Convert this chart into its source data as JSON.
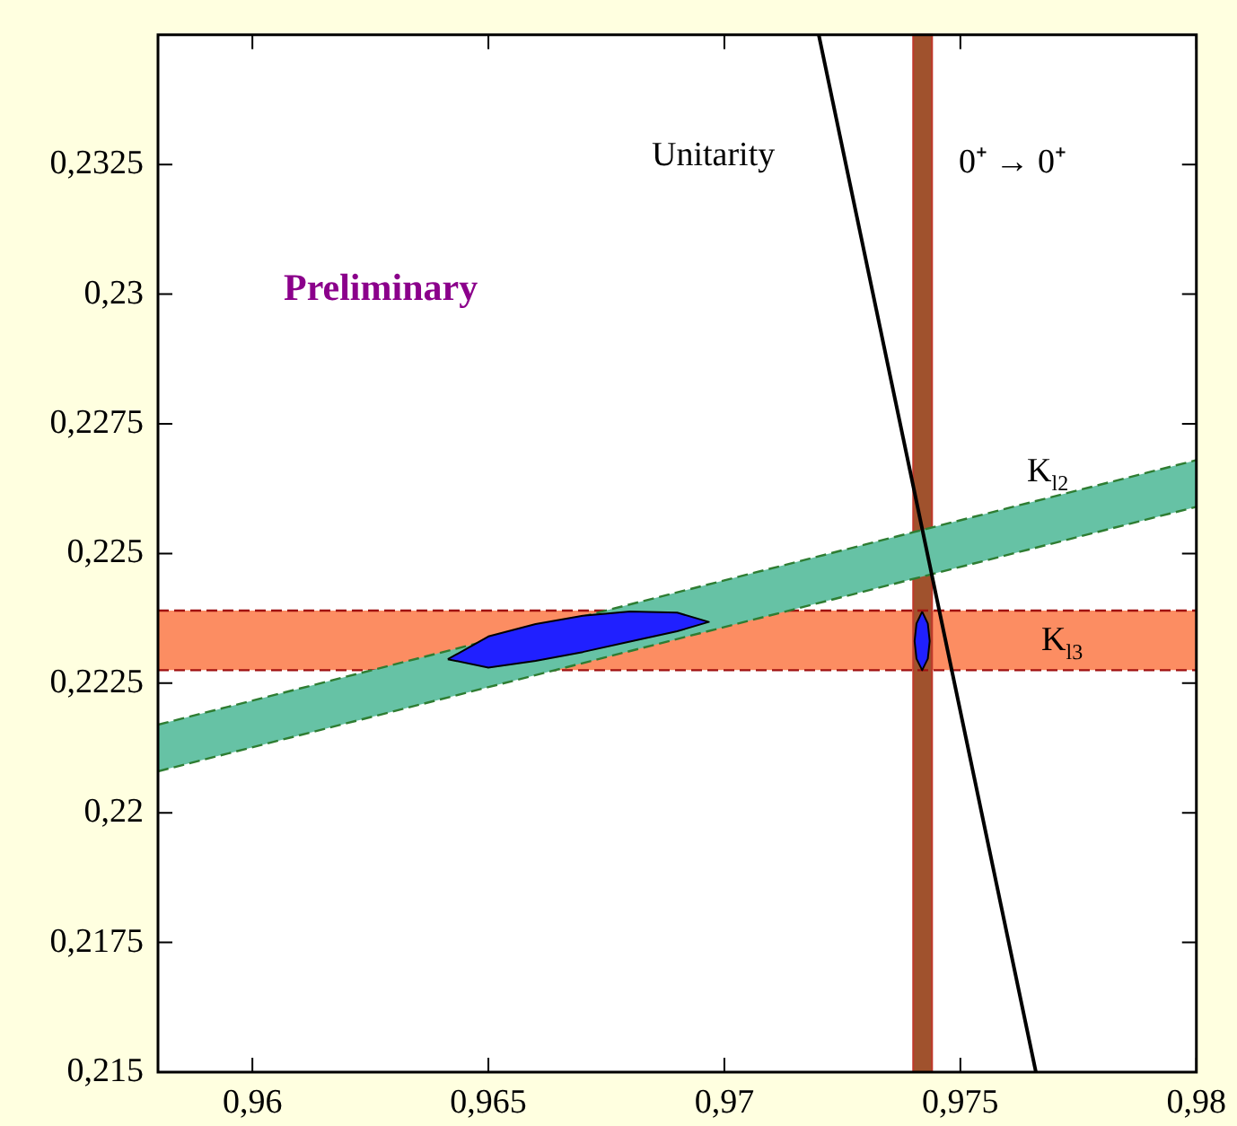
{
  "chart_data": {
    "type": "line",
    "xlim": [
      0.958,
      0.98
    ],
    "ylim": [
      0.215,
      0.235
    ],
    "xticks": [
      {
        "value": 0.96,
        "label": "0,96"
      },
      {
        "value": 0.965,
        "label": "0,965"
      },
      {
        "value": 0.97,
        "label": "0,97"
      },
      {
        "value": 0.975,
        "label": "0,975"
      },
      {
        "value": 0.98,
        "label": "0,98"
      }
    ],
    "yticks": [
      {
        "value": 0.215,
        "label": "0,215"
      },
      {
        "value": 0.2175,
        "label": "0,2175"
      },
      {
        "value": 0.22,
        "label": "0,22"
      },
      {
        "value": 0.2225,
        "label": "0,2225"
      },
      {
        "value": 0.225,
        "label": "0,225"
      },
      {
        "value": 0.2275,
        "label": "0,2275"
      },
      {
        "value": 0.23,
        "label": "0,23"
      },
      {
        "value": 0.2325,
        "label": "0,2325"
      }
    ],
    "grid": false,
    "legend": false,
    "marker": "none",
    "ref_lines": [
      {
        "axis": "y",
        "value": 0.22275,
        "color": "#a01010",
        "line_style": "dashed"
      },
      {
        "axis": "y",
        "value": 0.2239,
        "color": "#a01010",
        "line_style": "dashed"
      }
    ],
    "bands": [
      {
        "axis": "y",
        "from": 0.22275,
        "to": 0.2239,
        "color": "#fc8d62"
      },
      {
        "axis": "x",
        "from": 0.974,
        "to": 0.9744,
        "color": "#a0522d"
      }
    ],
    "series": [
      {
        "type": "line",
        "color": "#66c2a5",
        "line_style": "dashed",
        "x": [
          0.958,
          0.98
        ],
        "lower": [
          0.2208,
          0.2259
        ],
        "upper": [
          0.2217,
          0.2268
        ],
        "values": [
          null,
          null
        ]
      },
      {
        "type": "line",
        "color": "#2e7d32",
        "line_style": "dashed",
        "x": [
          0.958,
          0.98
        ],
        "values": [
          0.2208,
          0.2259
        ]
      },
      {
        "type": "line",
        "color": "#2e7d32",
        "line_style": "dashed",
        "x": [
          0.958,
          0.98
        ],
        "values": [
          0.2217,
          0.2268
        ]
      },
      {
        "type": "line",
        "color": "#000000",
        "line_style": "solid",
        "x": [
          0.972,
          0.9766
        ],
        "values": [
          0.235,
          0.215
        ]
      },
      {
        "type": "area",
        "color": "#2020ff",
        "line_style": "solid",
        "x": [
          0.96414,
          0.965,
          0.966,
          0.967,
          0.968,
          0.969,
          0.96967,
          0.969,
          0.968,
          0.967,
          0.966,
          0.965,
          0.96414
        ],
        "values": [
          0.22296,
          0.2234,
          0.22364,
          0.2238,
          0.22388,
          0.22386,
          0.22368,
          0.2235,
          0.2233,
          0.2231,
          0.22293,
          0.2228,
          0.22296
        ]
      },
      {
        "type": "area",
        "color": "#2020ff",
        "line_style": "solid",
        "x": [
          0.97419,
          0.97431,
          0.97435,
          0.97431,
          0.97419,
          0.97407,
          0.97403,
          0.97407,
          0.97419
        ],
        "values": [
          0.22388,
          0.22365,
          0.22331,
          0.22297,
          0.22275,
          0.22297,
          0.22331,
          0.22365,
          0.22388
        ]
      }
    ],
    "annotations": [
      "Unitarity",
      "0⁺ → 0⁺",
      "Preliminary",
      "K$_{l2}$",
      "K$_{l3}$"
    ]
  }
}
